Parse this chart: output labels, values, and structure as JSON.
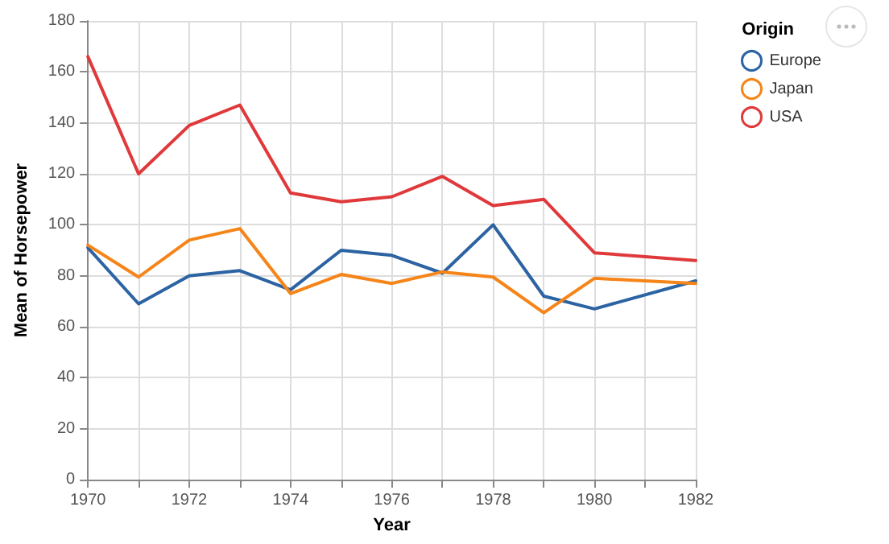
{
  "chart_data": {
    "type": "line",
    "xlabel": "Year",
    "ylabel": "Mean of Horsepower",
    "legend_title": "Origin",
    "xlim": [
      1970,
      1982
    ],
    "xticks": [
      1970,
      {
        "value": 1971,
        "label": null
      },
      1972,
      {
        "value": 1973,
        "label": null
      },
      1974,
      {
        "value": 1975,
        "label": null
      },
      1976,
      {
        "value": 1977,
        "label": null
      },
      1978,
      {
        "value": 1979,
        "label": null
      },
      1980,
      {
        "value": 1981,
        "label": null
      },
      1982
    ],
    "ylim": [
      0,
      180
    ],
    "yticks": [
      0,
      20,
      40,
      60,
      80,
      100,
      120,
      140,
      160,
      180
    ],
    "x": [
      1970,
      1971,
      1972,
      1973,
      1974,
      1975,
      1976,
      1977,
      1978,
      1979,
      1980,
      1982
    ],
    "series": [
      {
        "name": "Europe",
        "color": "#2c63a3",
        "values": [
          91,
          69,
          80,
          82,
          74.5,
          90,
          88,
          81,
          100,
          72,
          67,
          78
        ]
      },
      {
        "name": "Japan",
        "color": "#f58518",
        "values": [
          92,
          79.5,
          94,
          98.5,
          73,
          80.5,
          77,
          81.5,
          79.5,
          65.5,
          79,
          77
        ]
      },
      {
        "name": "USA",
        "color": "#e0393b",
        "values": [
          166,
          120,
          139,
          147,
          112.5,
          109,
          111,
          119,
          107.5,
          110,
          89,
          86
        ]
      }
    ],
    "grid": true,
    "legend": "top right",
    "marker": "none",
    "line_style": "solid"
  }
}
